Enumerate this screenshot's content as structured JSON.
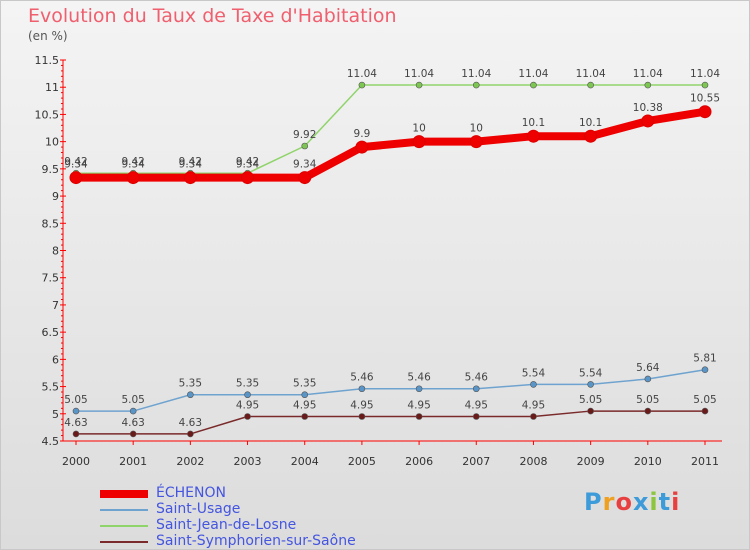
{
  "chart_data": {
    "type": "line",
    "title": "Evolution du Taux de Taxe d'Habitation",
    "unit_label": "(en %)",
    "x": [
      "2000",
      "2001",
      "2002",
      "2003",
      "2004",
      "2005",
      "2006",
      "2007",
      "2008",
      "2009",
      "2010",
      "2011"
    ],
    "ylim": [
      4.5,
      11.5
    ],
    "yticks": [
      "4.5",
      "5",
      "5.5",
      "6",
      "6.5",
      "7",
      "7.5",
      "8",
      "8.5",
      "9",
      "9.5",
      "10",
      "10.5",
      "11",
      "11.5"
    ],
    "grid": false,
    "legend_position": "bottom-left",
    "series": [
      {
        "name": "ÉCHENON",
        "color": "#ee0000",
        "width": 8,
        "marker": 6,
        "values": [
          9.34,
          9.34,
          9.34,
          9.34,
          9.34,
          9.9,
          10,
          10,
          10.1,
          10.1,
          10.38,
          10.55
        ],
        "labels": [
          "9.34",
          "9.34",
          "9.34",
          "9.34",
          "9.34",
          "9.9",
          "10",
          "10",
          "10.1",
          "10.1",
          "10.38",
          "10.55"
        ]
      },
      {
        "name": "Saint-Usage",
        "color": "#6fa3cf",
        "width": 1.5,
        "marker": 3,
        "values": [
          5.05,
          5.05,
          5.35,
          5.35,
          5.35,
          5.46,
          5.46,
          5.46,
          5.54,
          5.54,
          5.64,
          5.81
        ],
        "labels": [
          "5.05",
          "5.05",
          "5.35",
          "5.35",
          "5.35",
          "5.46",
          "5.46",
          "5.46",
          "5.54",
          "5.54",
          "5.64",
          "5.81"
        ]
      },
      {
        "name": "Saint-Jean-de-Losne",
        "color": "#8fd46a",
        "width": 1.5,
        "marker": 3,
        "values": [
          9.42,
          9.42,
          9.42,
          9.42,
          9.92,
          11.04,
          11.04,
          11.04,
          11.04,
          11.04,
          11.04,
          11.04
        ],
        "labels": [
          "9.42",
          "9.42",
          "9.42",
          "9.42",
          "9.92",
          "11.04",
          "11.04",
          "11.04",
          "11.04",
          "11.04",
          "11.04",
          "11.04"
        ]
      },
      {
        "name": "Saint-Symphorien-sur-Saône",
        "color": "#7a2a2a",
        "width": 1.5,
        "marker": 3,
        "values": [
          4.63,
          4.63,
          4.63,
          4.95,
          4.95,
          4.95,
          4.95,
          4.95,
          4.95,
          5.05,
          5.05,
          5.05
        ],
        "labels": [
          "4.63",
          "4.63",
          "4.63",
          "4.95",
          "4.95",
          "4.95",
          "4.95",
          "4.95",
          "4.95",
          "5.05",
          "5.05",
          "5.05"
        ]
      }
    ]
  },
  "logo": {
    "text": "Proxiti",
    "colors": [
      "#3c9bd8",
      "#f0a020",
      "#e84040",
      "#3c9bd8",
      "#8cc63f",
      "#3c9bd8",
      "#e84040"
    ]
  }
}
